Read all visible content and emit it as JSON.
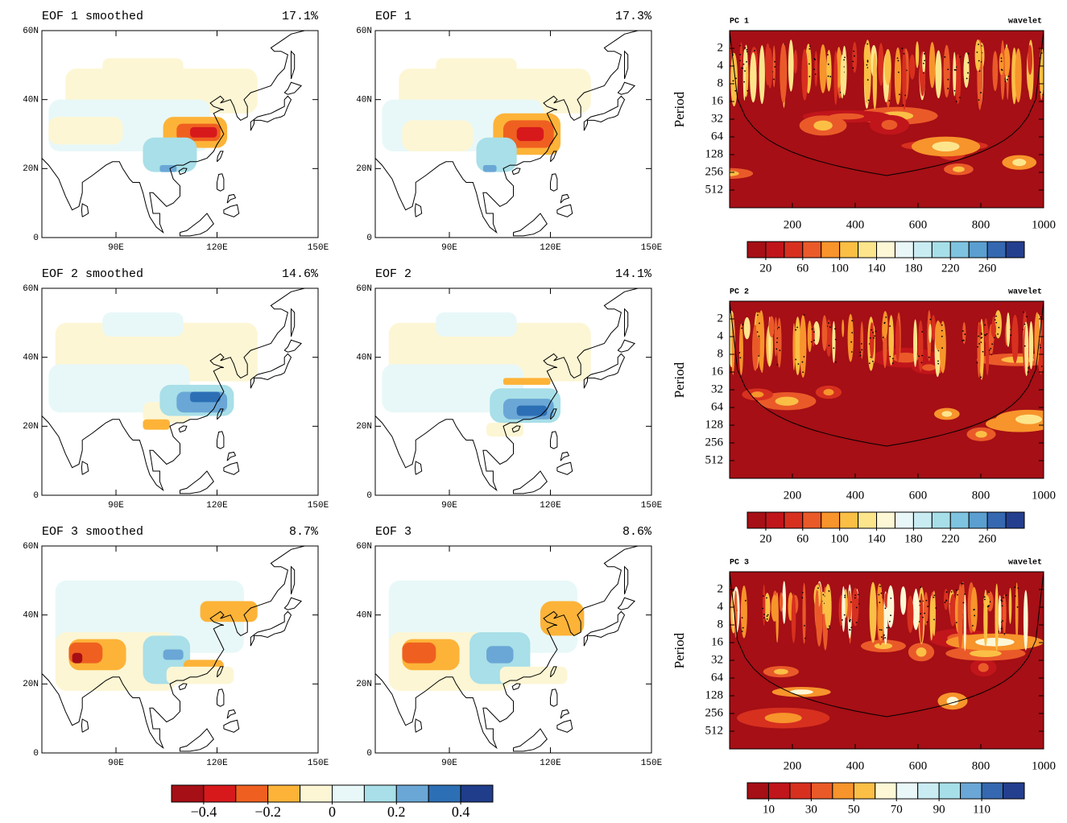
{
  "chart_data": [
    {
      "type": "map",
      "title": "EOF 1 smoothed",
      "variance": "17.1%",
      "xlim": [
        68,
        150
      ],
      "ylim": [
        0,
        60
      ],
      "xticks": [
        {
          "value": 90,
          "label": "90E"
        },
        {
          "value": 120,
          "label": "120E"
        },
        {
          "value": 150,
          "label": "150E"
        }
      ],
      "yticks": [
        0,
        {
          "value": 20,
          "label": "20N"
        },
        {
          "value": 40,
          "label": "40N"
        },
        {
          "value": 60,
          "label": "60N"
        }
      ]
    },
    {
      "type": "map",
      "title": "EOF 1",
      "variance": "17.3%",
      "xlim": [
        68,
        150
      ],
      "ylim": [
        0,
        60
      ],
      "xticks": [
        {
          "value": 90,
          "label": "90E"
        },
        {
          "value": 120,
          "label": "120E"
        },
        {
          "value": 150,
          "label": "150E"
        }
      ],
      "yticks": [
        0,
        {
          "value": 20,
          "label": "20N"
        },
        {
          "value": 40,
          "label": "40N"
        },
        {
          "value": 60,
          "label": "60N"
        }
      ]
    },
    {
      "type": "wavelet",
      "title": "PC 1",
      "subtitle": "wavelet",
      "ylabel": "Period",
      "xlim": [
        0,
        1000
      ],
      "ylim": [
        1,
        1024
      ],
      "log_y": true,
      "xticks": [
        200,
        400,
        600,
        800,
        1000
      ],
      "yticks": [
        2,
        4,
        8,
        16,
        32,
        64,
        128,
        256,
        512
      ],
      "colorbar": {
        "boundaries": [
          0,
          20,
          40,
          60,
          80,
          100,
          120,
          140,
          160,
          180,
          200,
          220,
          240,
          260,
          280,
          300
        ],
        "ticks": [
          20,
          60,
          100,
          140,
          180,
          220,
          260
        ],
        "colors": [
          "#a50f15",
          "#c0151b",
          "#d7301f",
          "#ea5a29",
          "#f7942b",
          "#fbbf45",
          "#fde58c",
          "#fdf7d6",
          "#e9f7f8",
          "#c9ecf2",
          "#a7dfe9",
          "#7ec3e0",
          "#5a9fd0",
          "#3568b0",
          "#253f8f"
        ]
      }
    },
    {
      "type": "map",
      "title": "EOF 2 smoothed",
      "variance": "14.6%",
      "xlim": [
        68,
        150
      ],
      "ylim": [
        0,
        60
      ],
      "xticks": [
        {
          "value": 90,
          "label": "90E"
        },
        {
          "value": 120,
          "label": "120E"
        },
        {
          "value": 150,
          "label": "150E"
        }
      ],
      "yticks": [
        0,
        {
          "value": 20,
          "label": "20N"
        },
        {
          "value": 40,
          "label": "40N"
        },
        {
          "value": 60,
          "label": "60N"
        }
      ]
    },
    {
      "type": "map",
      "title": "EOF 2",
      "variance": "14.1%",
      "xlim": [
        68,
        150
      ],
      "ylim": [
        0,
        60
      ],
      "xticks": [
        {
          "value": 90,
          "label": "90E"
        },
        {
          "value": 120,
          "label": "120E"
        },
        {
          "value": 150,
          "label": "150E"
        }
      ],
      "yticks": [
        0,
        {
          "value": 20,
          "label": "20N"
        },
        {
          "value": 40,
          "label": "40N"
        },
        {
          "value": 60,
          "label": "60N"
        }
      ]
    },
    {
      "type": "wavelet",
      "title": "PC 2",
      "subtitle": "wavelet",
      "ylabel": "Period",
      "xlim": [
        0,
        1000
      ],
      "ylim": [
        1,
        1024
      ],
      "log_y": true,
      "xticks": [
        200,
        400,
        600,
        800,
        1000
      ],
      "yticks": [
        2,
        4,
        8,
        16,
        32,
        64,
        128,
        256,
        512
      ],
      "colorbar": {
        "boundaries": [
          0,
          20,
          40,
          60,
          80,
          100,
          120,
          140,
          160,
          180,
          200,
          220,
          240,
          260,
          280,
          300
        ],
        "ticks": [
          20,
          60,
          100,
          140,
          180,
          220,
          260
        ],
        "colors": [
          "#a50f15",
          "#c0151b",
          "#d7301f",
          "#ea5a29",
          "#f7942b",
          "#fbbf45",
          "#fde58c",
          "#fdf7d6",
          "#e9f7f8",
          "#c9ecf2",
          "#a7dfe9",
          "#7ec3e0",
          "#5a9fd0",
          "#3568b0",
          "#253f8f"
        ]
      }
    },
    {
      "type": "map",
      "title": "EOF 3 smoothed",
      "variance": "8.7%",
      "xlim": [
        68,
        150
      ],
      "ylim": [
        0,
        60
      ],
      "xticks": [
        {
          "value": 90,
          "label": "90E"
        },
        {
          "value": 120,
          "label": "120E"
        },
        {
          "value": 150,
          "label": "150E"
        }
      ],
      "yticks": [
        0,
        {
          "value": 20,
          "label": "20N"
        },
        {
          "value": 40,
          "label": "40N"
        },
        {
          "value": 60,
          "label": "60N"
        }
      ]
    },
    {
      "type": "map",
      "title": "EOF 3",
      "variance": "8.6%",
      "xlim": [
        68,
        150
      ],
      "ylim": [
        0,
        60
      ],
      "xticks": [
        {
          "value": 90,
          "label": "90E"
        },
        {
          "value": 120,
          "label": "120E"
        },
        {
          "value": 150,
          "label": "150E"
        }
      ],
      "yticks": [
        0,
        {
          "value": 20,
          "label": "20N"
        },
        {
          "value": 40,
          "label": "40N"
        },
        {
          "value": 60,
          "label": "60N"
        }
      ]
    },
    {
      "type": "wavelet",
      "title": "PC 3",
      "subtitle": "wavelet",
      "ylabel": "Period",
      "xlim": [
        0,
        1000
      ],
      "ylim": [
        1,
        1024
      ],
      "log_y": true,
      "xticks": [
        200,
        400,
        600,
        800,
        1000
      ],
      "yticks": [
        2,
        4,
        8,
        16,
        32,
        64,
        128,
        256,
        512
      ],
      "colorbar": {
        "boundaries": [
          0,
          10,
          20,
          30,
          40,
          50,
          60,
          70,
          80,
          90,
          100,
          110,
          120,
          130
        ],
        "ticks": [
          10,
          30,
          50,
          70,
          90,
          110
        ],
        "colors": [
          "#a50f15",
          "#c0151b",
          "#d7301f",
          "#ea5a29",
          "#f7942b",
          "#fbbf45",
          "#fdf7d6",
          "#e9f7f8",
          "#c9ecf2",
          "#a7dfe9",
          "#6aa7d6",
          "#3568b0",
          "#253f8f"
        ]
      }
    }
  ],
  "colorbar": {
    "boundaries": [
      -0.5,
      -0.4,
      -0.3,
      -0.2,
      -0.1,
      0,
      0.1,
      0.2,
      0.3,
      0.4,
      0.5
    ],
    "ticks": [
      {
        "value": -0.4,
        "label": "−0.4"
      },
      {
        "value": -0.2,
        "label": "−0.2"
      },
      0,
      0.2,
      0.4
    ],
    "colors": [
      "#a50f15",
      "#d7191c",
      "#ef6020",
      "#fdb338",
      "#fdf6d4",
      "#e8f8f8",
      "#a8dfe8",
      "#6aa7d6",
      "#2d6fb5",
      "#1f3d8a"
    ]
  }
}
